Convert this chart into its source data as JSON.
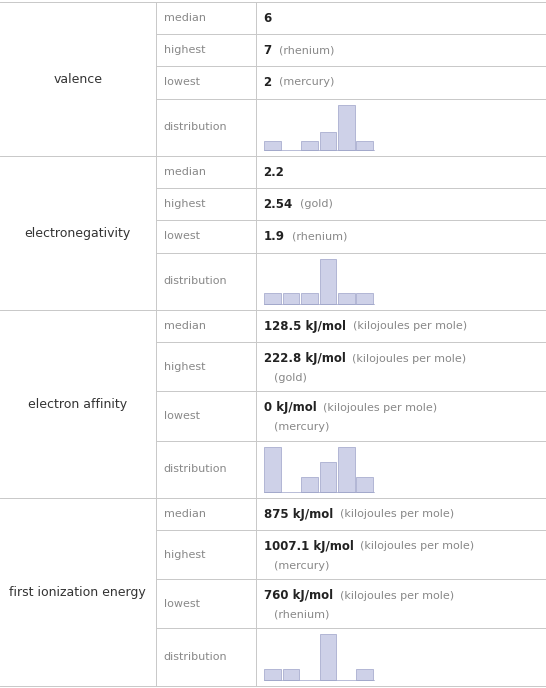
{
  "sections": [
    {
      "label": "valence",
      "rows": [
        {
          "type": "stat",
          "key": "median",
          "bold": "6",
          "rest": "",
          "rest2": ""
        },
        {
          "type": "stat",
          "key": "highest",
          "bold": "7",
          "rest": "  (rhenium)",
          "rest2": ""
        },
        {
          "type": "stat",
          "key": "lowest",
          "bold": "2",
          "rest": "  (mercury)",
          "rest2": ""
        },
        {
          "type": "dist",
          "key": "distribution",
          "bars": [
            1,
            0,
            1,
            2,
            5,
            1
          ]
        }
      ]
    },
    {
      "label": "electronegativity",
      "rows": [
        {
          "type": "stat",
          "key": "median",
          "bold": "2.2",
          "rest": "",
          "rest2": ""
        },
        {
          "type": "stat",
          "key": "highest",
          "bold": "2.54",
          "rest": "  (gold)",
          "rest2": ""
        },
        {
          "type": "stat",
          "key": "lowest",
          "bold": "1.9",
          "rest": "  (rhenium)",
          "rest2": ""
        },
        {
          "type": "dist",
          "key": "distribution",
          "bars": [
            1,
            1,
            1,
            4,
            1,
            1
          ]
        }
      ]
    },
    {
      "label": "electron affinity",
      "rows": [
        {
          "type": "stat",
          "key": "median",
          "bold": "128.5 kJ/mol",
          "rest": "  (kilojoules per mole)",
          "rest2": ""
        },
        {
          "type": "stat",
          "key": "highest",
          "bold": "222.8 kJ/mol",
          "rest": "  (kilojoules per mole)",
          "rest2": "(gold)"
        },
        {
          "type": "stat",
          "key": "lowest",
          "bold": "0 kJ/mol",
          "rest": "  (kilojoules per mole)",
          "rest2": "(mercury)"
        },
        {
          "type": "dist",
          "key": "distribution",
          "bars": [
            3,
            0,
            1,
            2,
            3,
            1
          ]
        }
      ]
    },
    {
      "label": "first ionization energy",
      "rows": [
        {
          "type": "stat",
          "key": "median",
          "bold": "875 kJ/mol",
          "rest": "  (kilojoules per mole)",
          "rest2": ""
        },
        {
          "type": "stat",
          "key": "highest",
          "bold": "1007.1 kJ/mol",
          "rest": "  (kilojoules per mole)",
          "rest2": "(mercury)"
        },
        {
          "type": "stat",
          "key": "lowest",
          "bold": "760 kJ/mol",
          "rest": "  (kilojoules per mole)",
          "rest2": "(rhenium)"
        },
        {
          "type": "dist",
          "key": "distribution",
          "bars": [
            1,
            1,
            0,
            4,
            0,
            1
          ]
        }
      ]
    }
  ],
  "c1": 0.285,
  "c2": 0.468,
  "bar_color": "#ced1e8",
  "bar_edge_color": "#9da3c8",
  "grid_color": "#c8c8c8",
  "text_color": "#222222",
  "key_color": "#888888",
  "rest_color": "#888888",
  "label_color": "#333333",
  "bg_color": "#ffffff",
  "rh_stat": 38,
  "rh_stat2": 58,
  "rh_dist": 68,
  "bold_fs": 8.5,
  "rest_fs": 8.0,
  "key_fs": 8.0,
  "label_fs": 9.0
}
